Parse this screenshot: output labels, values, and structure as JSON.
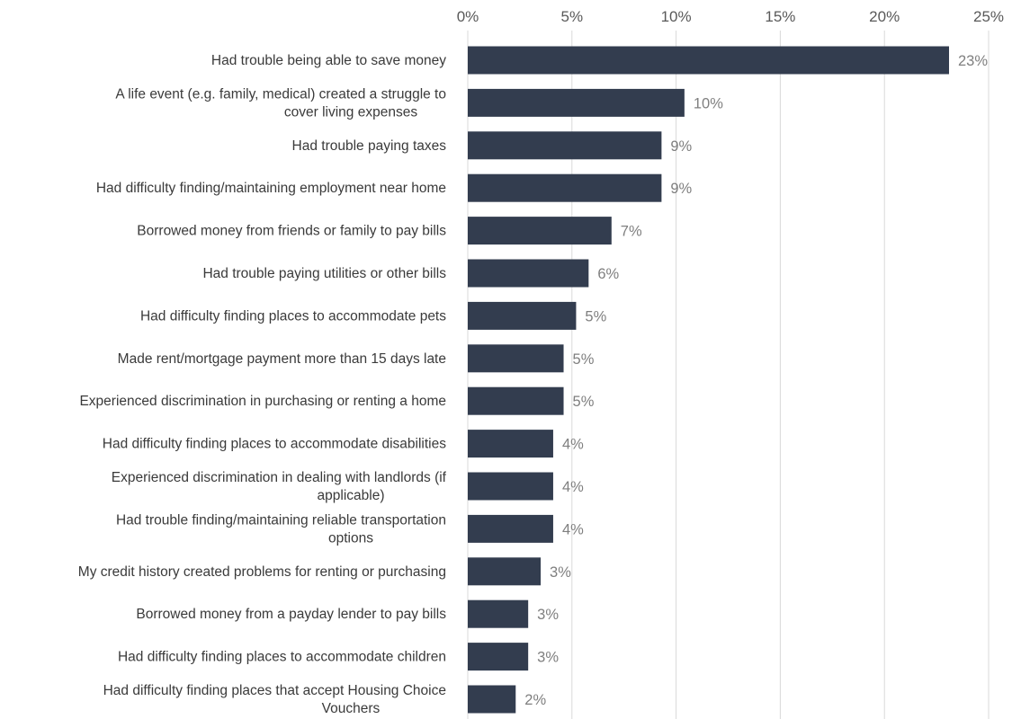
{
  "chart_data": {
    "type": "bar",
    "orientation": "horizontal",
    "title": "",
    "xlabel": "",
    "ylabel": "",
    "xlim": [
      0,
      25
    ],
    "ticks": [
      0,
      5,
      10,
      15,
      20,
      25
    ],
    "tick_labels": [
      "0%",
      "5%",
      "10%",
      "15%",
      "20%",
      "25%"
    ],
    "axis_position": "top",
    "grid": true,
    "legend": "none",
    "bar_color": "#333d4f",
    "categories": [
      "Had trouble being able to save money",
      "A life event (e.g. family, medical) created a struggle to cover living expenses",
      "Had trouble paying taxes",
      "Had difficulty finding/maintaining employment near home",
      "Borrowed money from friends or family to pay bills",
      "Had trouble paying utilities or other bills",
      "Had difficulty finding places to accommodate pets",
      "Made rent/mortgage payment more than 15 days late",
      "Experienced discrimination in purchasing or renting a home",
      "Had difficulty finding places to accommodate disabilities",
      "Experienced discrimination in dealing with landlords (if applicable)",
      "Had trouble finding/maintaining reliable transportation options",
      "My credit history created problems for renting or purchasing",
      "Borrowed money from a payday lender to pay bills",
      "Had difficulty finding places to accommodate children",
      "Had difficulty finding places that accept Housing Choice Vouchers"
    ],
    "values": [
      23.1,
      10.4,
      9.3,
      9.3,
      6.9,
      5.8,
      5.2,
      4.6,
      4.6,
      4.1,
      4.1,
      4.1,
      3.5,
      2.9,
      2.9,
      2.3
    ],
    "data_labels": [
      "23%",
      "10%",
      "9%",
      "9%",
      "7%",
      "6%",
      "5%",
      "5%",
      "5%",
      "4%",
      "4%",
      "4%",
      "3%",
      "3%",
      "3%",
      "2%"
    ]
  }
}
